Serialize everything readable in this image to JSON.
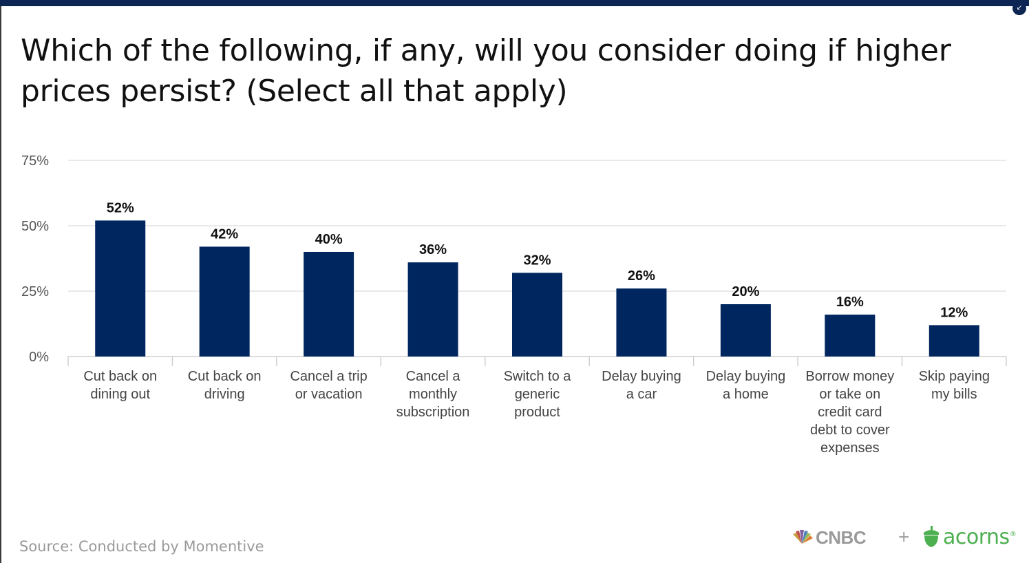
{
  "title": "Which of the following, if any, will you consider doing if higher prices persist? (Select all that apply)",
  "source": "Source: Conducted by Momentive",
  "logos": {
    "cnbc": "CNBC",
    "plus": "+",
    "acorns": "acorns",
    "acorns_mark": "®"
  },
  "colors": {
    "bar": "#002660",
    "topbar": "#0d2553",
    "grid": "#e2e2e2",
    "acorns_green": "#4caf50"
  },
  "chart_data": {
    "type": "bar",
    "categories": [
      [
        "Cut back on",
        "dining out"
      ],
      [
        "Cut back on",
        "driving"
      ],
      [
        "Cancel a trip",
        "or vacation"
      ],
      [
        "Cancel a",
        "monthly",
        "subscription"
      ],
      [
        "Switch to a",
        "generic",
        "product"
      ],
      [
        "Delay buying",
        "a car"
      ],
      [
        "Delay buying",
        "a home"
      ],
      [
        "Borrow money",
        "or take on",
        "credit card",
        "debt to cover",
        "expenses"
      ],
      [
        "Skip paying",
        "my bills"
      ]
    ],
    "values": [
      52,
      42,
      40,
      36,
      32,
      26,
      20,
      16,
      12
    ],
    "value_labels": [
      "52%",
      "42%",
      "40%",
      "36%",
      "32%",
      "26%",
      "20%",
      "16%",
      "12%"
    ],
    "yticks": [
      {
        "value": 0,
        "label": "0%"
      },
      {
        "value": 25,
        "label": "25%"
      },
      {
        "value": 50,
        "label": "50%"
      },
      {
        "value": 75,
        "label": "75%"
      }
    ],
    "ylim": [
      0,
      75
    ],
    "grid": true,
    "legend": "none"
  }
}
